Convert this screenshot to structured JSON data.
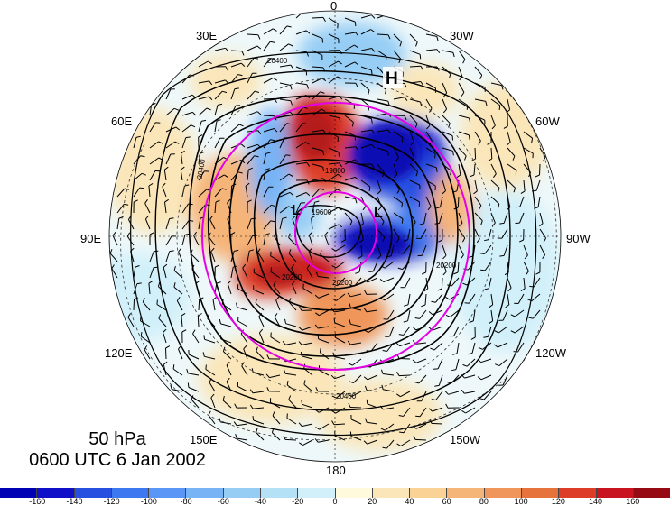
{
  "lon_labels": {
    "n0": "0",
    "n30e": "30E",
    "n30w": "30W",
    "n60e": "60E",
    "n60w": "60W",
    "n90e": "90E",
    "n90w": "90W",
    "n120e": "120E",
    "n120w": "120W",
    "n150e": "150E",
    "n150w": "150W",
    "n180": "180"
  },
  "pressure_level": "50 hPa",
  "valid_time": "0600 UTC 6 Jan 2002",
  "high_marker": "H",
  "low_marker_a": "L",
  "low_marker_b": "L",
  "contour_labels": [
    "20400",
    "20200",
    "19600",
    "20200",
    "20200",
    "20400",
    "19800",
    "20400"
  ],
  "colorbar": {
    "ticks": [
      "-160",
      "-140",
      "-120",
      "-100",
      "-80",
      "-60",
      "-40",
      "-20",
      "0",
      "20",
      "40",
      "60",
      "80",
      "100",
      "120",
      "140",
      "160"
    ],
    "colors": [
      "#1010c8",
      "#2850e0",
      "#3c78f0",
      "#5a96f5",
      "#78b4f5",
      "#96cdf5",
      "#b4e1f5",
      "#d2f0fa",
      "#fffadc",
      "#fae6b9",
      "#fad296",
      "#f5b478",
      "#f0965a",
      "#e6733c",
      "#dc3c28",
      "#c8141e",
      "#960a14"
    ]
  },
  "map_colors": {
    "warm_anomaly": "#c81e1e",
    "cold_anomaly": "#1414c8",
    "circle": "#e600e6"
  }
}
